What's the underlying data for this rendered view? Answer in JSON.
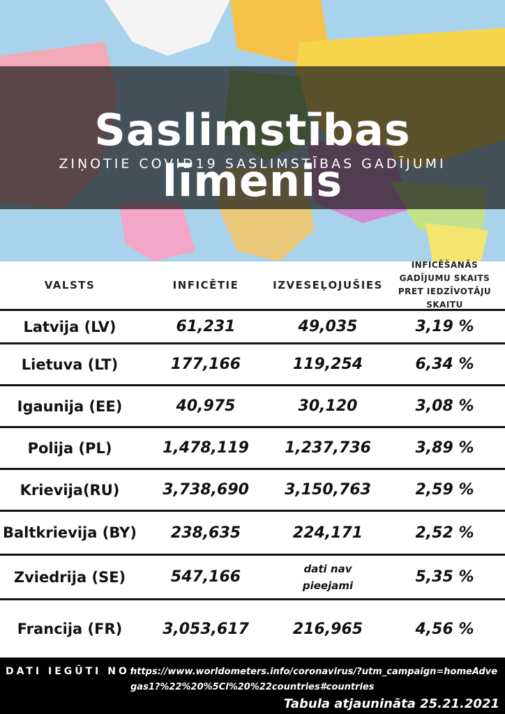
{
  "header": {
    "title": "Saslimstības līmenis",
    "subtitle": "ZIŅOTIE COVID19 SASLIMSTĪBAS GADĪJUMI"
  },
  "table": {
    "columns": [
      "VALSTS",
      "INFICĒTIE",
      "IZVESEĻOJUŠIES",
      "INFICĒŠANĀS GADĪJUMU SKAITS PRET IEDZĪVOTĀJU SKAITU"
    ],
    "rows": [
      [
        "Latvija (LV)",
        "61,231",
        "49,035",
        "3,19 %"
      ],
      [
        "Lietuva (LT)",
        "177,166",
        "119,254",
        "6,34 %"
      ],
      [
        "Igaunija (EE)",
        "40,975",
        "30,120",
        "3,08 %"
      ],
      [
        "Polija (PL)",
        "1,478,119",
        "1,237,736",
        "3,89 %"
      ],
      [
        "Krievija(RU)",
        "3,738,690",
        "3,150,763",
        "2,59 %"
      ],
      [
        "Baltkrievija (BY)",
        "238,635",
        "224,171",
        "2,52 %"
      ],
      [
        "Zviedrija (SE)",
        "547,166",
        "dati nav pieejami",
        "5,35 %"
      ],
      [
        "Francija (FR)",
        "3,053,617",
        "216,965",
        "4,56 %"
      ]
    ]
  },
  "footer": {
    "source_label": "DATI IEGŪTI NO:",
    "url": "https://www.worldometers.info/coronavirus/?utm_campaign=homeAdvegas1?%22%20%5Cl%20%22countries#countries",
    "updated": "Tabula atjaunināta 25.21.2021"
  }
}
